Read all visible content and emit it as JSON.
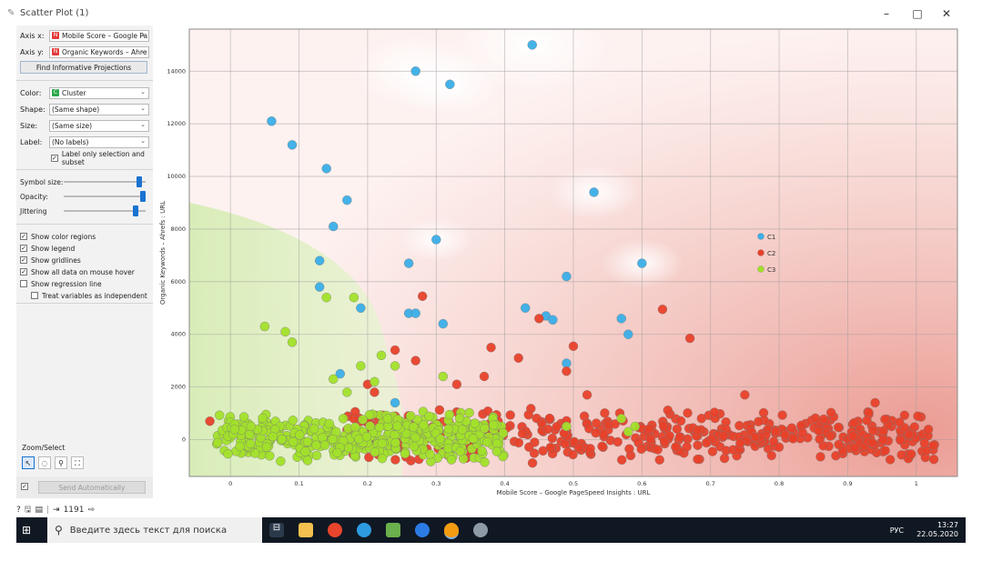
{
  "window": {
    "title": "Scatter Plot (1)",
    "controls": [
      "–",
      "□",
      "✕"
    ]
  },
  "panel": {
    "axis_x": {
      "label": "Axis x:",
      "value": "Mobile Score – Google Pa",
      "badge": "N",
      "badge_color": "#e23a3a"
    },
    "axis_y": {
      "label": "Axis y:",
      "value": "Organic Keywords – Ahre",
      "badge": "N",
      "badge_color": "#e23a3a"
    },
    "find_button": "Find Informative Projections",
    "color": {
      "label": "Color:",
      "value": "Cluster",
      "badge": "C",
      "badge_color": "#2aa84a"
    },
    "shape": {
      "label": "Shape:",
      "value": "(Same shape)"
    },
    "size": {
      "label": "Size:",
      "value": "(Same size)"
    },
    "label": {
      "label": "Label:",
      "value": "(No labels)"
    },
    "label_only_selection": "Label only selection and subset",
    "symbol_size": "Symbol size:",
    "opacity": "Opacity:",
    "jittering": "Jittering",
    "symbol_size_level": 0.95,
    "opacity_level": 1.0,
    "jittering_level": 0.9,
    "checks": [
      {
        "label": "Show color regions",
        "checked": true
      },
      {
        "label": "Show legend",
        "checked": true
      },
      {
        "label": "Show gridlines",
        "checked": true
      },
      {
        "label": "Show all data on mouse hover",
        "checked": true
      },
      {
        "label": "Show regression line",
        "checked": false
      },
      {
        "label": "Treat variables as independent",
        "checked": false
      }
    ],
    "zoom_select": "Zoom/Select",
    "send_automatically": "Send Automatically"
  },
  "statusbar": {
    "count": "1191"
  },
  "taskbar": {
    "search_placeholder": "Введите здесь текст для поиска",
    "lang": "РУС",
    "time": "13:27",
    "date": "22.05.2020"
  },
  "chart_data": {
    "type": "scatter",
    "xlabel": "Mobile Score – Google PageSpeed Insights : URL",
    "ylabel": "Organic Keywords – Ahrefs : URL",
    "xlim": [
      -0.06,
      1.06
    ],
    "ylim": [
      -1400,
      15600
    ],
    "x_ticks": [
      "0",
      "0.1",
      "0.2",
      "0.3",
      "0.4",
      "0.5",
      "0.6",
      "0.7",
      "0.8",
      "0.9",
      "1"
    ],
    "y_ticks": [
      "0",
      "2000",
      "4000",
      "6000",
      "8000",
      "10000",
      "12000",
      "14000"
    ],
    "grid": true,
    "legend_position": "right",
    "series": [
      {
        "name": "C1",
        "color": "#3aaee8",
        "points": [
          [
            0.44,
            15000
          ],
          [
            0.27,
            14000
          ],
          [
            0.32,
            13500
          ],
          [
            0.06,
            12100
          ],
          [
            0.09,
            11200
          ],
          [
            0.14,
            10300
          ],
          [
            0.53,
            9400
          ],
          [
            0.17,
            9100
          ],
          [
            0.15,
            8100
          ],
          [
            0.3,
            7600
          ],
          [
            0.6,
            6700
          ],
          [
            0.26,
            6700
          ],
          [
            0.13,
            6800
          ],
          [
            0.49,
            6200
          ],
          [
            0.13,
            5800
          ],
          [
            0.26,
            4800
          ],
          [
            0.27,
            4800
          ],
          [
            0.43,
            5000
          ],
          [
            0.46,
            4700
          ],
          [
            0.47,
            4550
          ],
          [
            0.57,
            4600
          ],
          [
            0.58,
            4000
          ],
          [
            0.31,
            4400
          ],
          [
            0.19,
            5000
          ],
          [
            0.49,
            2900
          ],
          [
            0.16,
            2500
          ],
          [
            0.24,
            1400
          ]
        ]
      },
      {
        "name": "C2",
        "color": "#e8412a",
        "band": {
          "x": [
            0.17,
            1.03
          ],
          "y": [
            -900,
            1200
          ],
          "n": 460
        },
        "points": [
          [
            -0.03,
            700
          ],
          [
            0.63,
            4950
          ],
          [
            0.28,
            5450
          ],
          [
            0.67,
            3850
          ],
          [
            0.5,
            3550
          ],
          [
            0.38,
            3500
          ],
          [
            0.42,
            3100
          ],
          [
            0.24,
            3400
          ],
          [
            0.27,
            3000
          ],
          [
            0.49,
            2600
          ],
          [
            0.33,
            2100
          ],
          [
            0.37,
            2400
          ],
          [
            0.45,
            4600
          ],
          [
            0.2,
            2100
          ],
          [
            0.21,
            1800
          ],
          [
            0.52,
            1700
          ],
          [
            0.75,
            1700
          ],
          [
            0.94,
            1400
          ]
        ]
      },
      {
        "name": "C3",
        "color": "#a2e02a",
        "band": {
          "x": [
            -0.02,
            0.4
          ],
          "y": [
            -900,
            1100
          ],
          "n": 420
        },
        "points": [
          [
            0.05,
            4300
          ],
          [
            0.08,
            4100
          ],
          [
            0.09,
            3700
          ],
          [
            0.14,
            5400
          ],
          [
            0.18,
            5400
          ],
          [
            0.22,
            3200
          ],
          [
            0.19,
            2800
          ],
          [
            0.24,
            2800
          ],
          [
            0.31,
            2400
          ],
          [
            0.15,
            2300
          ],
          [
            0.21,
            2200
          ],
          [
            0.17,
            1800
          ],
          [
            0.49,
            500
          ],
          [
            0.57,
            800
          ],
          [
            0.59,
            500
          ],
          [
            0.58,
            300
          ]
        ]
      }
    ]
  }
}
